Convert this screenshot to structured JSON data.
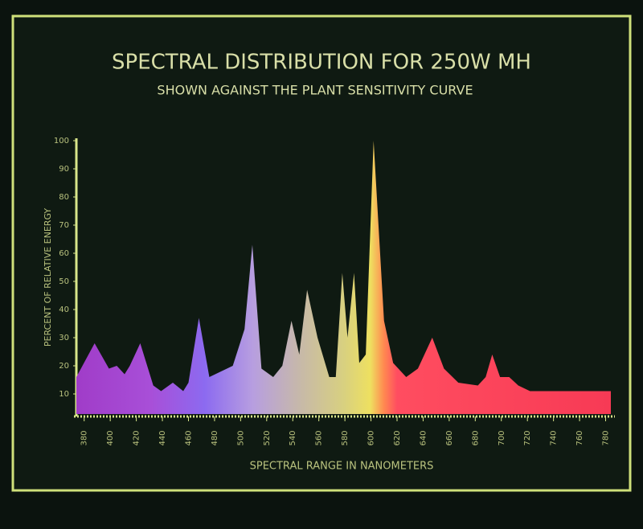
{
  "chart_data": {
    "type": "area",
    "title": "SPECTRAL DISTRIBUTION FOR 250W MH",
    "subtitle": "SHOWN AGAINST THE PLANT SENSITIVITY CURVE",
    "y_label": "PERCENT OF RELATIVE ENERGY",
    "x_label": "SPECTRAL RANGE IN NANOMETERS",
    "x": [
      374,
      388,
      399,
      405,
      411,
      415,
      423,
      433,
      439,
      448,
      456,
      460,
      468,
      476,
      485,
      494,
      503,
      509,
      516,
      525,
      532,
      539,
      545,
      551,
      559,
      568,
      573,
      578,
      582,
      587,
      591,
      596,
      602,
      610,
      617,
      627,
      636,
      647,
      656,
      667,
      682,
      688,
      693,
      699,
      706,
      713,
      722,
      747,
      784
    ],
    "values": [
      16,
      28,
      19,
      20,
      17,
      20,
      28,
      13,
      11,
      14,
      11,
      14,
      37,
      16,
      18,
      20,
      33,
      63,
      19,
      16,
      20,
      36,
      24,
      47,
      30,
      16,
      16,
      53,
      30,
      53,
      21,
      24,
      100,
      36,
      21,
      16,
      19,
      30,
      19,
      14,
      13,
      16,
      24,
      16,
      16,
      13,
      11,
      11,
      11
    ],
    "xlim": [
      374,
      784
    ],
    "xticks": [
      380,
      400,
      420,
      440,
      460,
      480,
      500,
      520,
      540,
      560,
      580,
      600,
      620,
      640,
      660,
      680,
      700,
      720,
      740,
      760,
      780
    ],
    "ylim": [
      0,
      100
    ],
    "yticks": [
      10,
      20,
      30,
      40,
      50,
      60,
      70,
      80,
      90,
      100
    ]
  }
}
